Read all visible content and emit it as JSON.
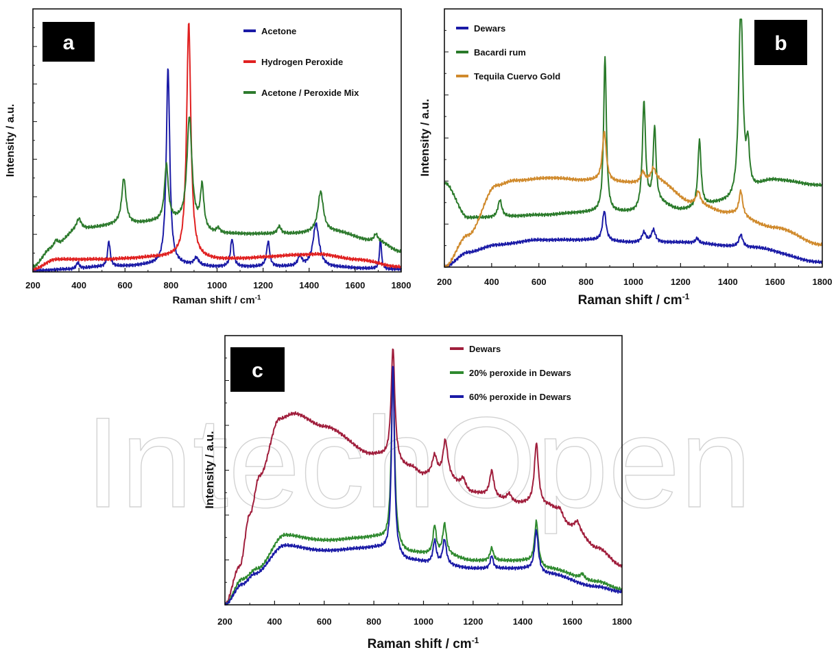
{
  "watermark": "IntechOpen",
  "chart_data": [
    {
      "panel": "a",
      "type": "line",
      "xlabel": "Raman shift / cm",
      "xlabel_sup": "-1",
      "ylabel": "Intensity / a.u.",
      "xlim": [
        200,
        1800
      ],
      "ylim": [
        0,
        1
      ],
      "x_ticks": [
        "200",
        "400",
        "600",
        "800",
        "1000",
        "1200",
        "1400",
        "1600",
        "1800"
      ],
      "y_tick_labels": false,
      "legend_position": "top-right",
      "series": [
        {
          "name": "Acetone",
          "color": "#1a1aa6",
          "base": [
            [
              200,
              0.005
            ],
            [
              350,
              0.01
            ],
            [
              500,
              0.02
            ],
            [
              800,
              0.03
            ],
            [
              1000,
              0.02
            ],
            [
              1400,
              0.02
            ],
            [
              1800,
              0.01
            ]
          ],
          "peaks": [
            [
              395,
              0.025,
              8
            ],
            [
              530,
              0.1,
              7
            ],
            [
              787,
              0.78,
              9
            ],
            [
              910,
              0.03,
              12
            ],
            [
              1065,
              0.11,
              8
            ],
            [
              1222,
              0.1,
              8
            ],
            [
              1360,
              0.04,
              10
            ],
            [
              1430,
              0.17,
              16
            ],
            [
              1710,
              0.12,
              5
            ]
          ]
        },
        {
          "name": "Hydrogen Peroxide",
          "color": "#e02020",
          "base": [
            [
              200,
              0.01
            ],
            [
              300,
              0.05
            ],
            [
              500,
              0.05
            ],
            [
              800,
              0.06
            ],
            [
              1000,
              0.05
            ],
            [
              1450,
              0.07
            ],
            [
              1600,
              0.05
            ],
            [
              1800,
              0.02
            ]
          ],
          "peaks": [
            [
              877,
              0.93,
              11
            ]
          ]
        },
        {
          "name": "Acetone / Peroxide Mix",
          "color": "#2d7a2d",
          "base": [
            [
              200,
              0.02
            ],
            [
              280,
              0.09
            ],
            [
              400,
              0.17
            ],
            [
              600,
              0.19
            ],
            [
              800,
              0.2
            ],
            [
              1000,
              0.15
            ],
            [
              1300,
              0.15
            ],
            [
              1500,
              0.16
            ],
            [
              1700,
              0.12
            ],
            [
              1800,
              0.08
            ]
          ],
          "peaks": [
            [
              300,
              0.03,
              12
            ],
            [
              400,
              0.04,
              12
            ],
            [
              595,
              0.18,
              11
            ],
            [
              780,
              0.22,
              10
            ],
            [
              880,
              0.43,
              13
            ],
            [
              935,
              0.17,
              9
            ],
            [
              1005,
              0.02,
              10
            ],
            [
              1270,
              0.03,
              10
            ],
            [
              1450,
              0.16,
              14
            ],
            [
              1690,
              0.03,
              10
            ]
          ]
        }
      ]
    },
    {
      "panel": "b",
      "type": "line",
      "xlabel": "Raman shift / cm",
      "xlabel_sup": "-1",
      "ylabel": "Intensity / a.u.",
      "xlim": [
        200,
        1800
      ],
      "ylim": [
        0,
        1
      ],
      "x_ticks": [
        "200",
        "400",
        "600",
        "800",
        "1000",
        "1200",
        "1400",
        "1600",
        "1800"
      ],
      "y_tick_labels": false,
      "legend_position": "top-left",
      "series": [
        {
          "name": "Dewars",
          "color": "#1a1aa6",
          "base": [
            [
              200,
              0.0
            ],
            [
              300,
              0.06
            ],
            [
              420,
              0.09
            ],
            [
              600,
              0.11
            ],
            [
              800,
              0.11
            ],
            [
              1000,
              0.1
            ],
            [
              1200,
              0.1
            ],
            [
              1500,
              0.08
            ],
            [
              1800,
              0.02
            ]
          ],
          "peaks": [
            [
              877,
              0.12,
              9
            ],
            [
              1045,
              0.04,
              10
            ],
            [
              1085,
              0.05,
              10
            ],
            [
              1270,
              0.02,
              8
            ],
            [
              1455,
              0.05,
              10
            ]
          ]
        },
        {
          "name": "Bacardi rum",
          "color": "#2a7a2a",
          "base": [
            [
              200,
              0.34
            ],
            [
              300,
              0.2
            ],
            [
              400,
              0.2
            ],
            [
              600,
              0.21
            ],
            [
              800,
              0.22
            ],
            [
              1000,
              0.22
            ],
            [
              1100,
              0.26
            ],
            [
              1200,
              0.23
            ],
            [
              1400,
              0.26
            ],
            [
              1600,
              0.35
            ],
            [
              1800,
              0.33
            ]
          ],
          "peaks": [
            [
              435,
              0.07,
              10
            ],
            [
              880,
              0.63,
              7
            ],
            [
              1045,
              0.43,
              8
            ],
            [
              1090,
              0.3,
              7
            ],
            [
              1280,
              0.27,
              8
            ],
            [
              1455,
              0.82,
              10
            ],
            [
              1485,
              0.17,
              8
            ]
          ]
        },
        {
          "name": "Tequila Cuervo Gold",
          "color": "#d08a2c",
          "base": [
            [
              200,
              0.0
            ],
            [
              300,
              0.13
            ],
            [
              420,
              0.33
            ],
            [
              500,
              0.35
            ],
            [
              650,
              0.36
            ],
            [
              800,
              0.35
            ],
            [
              1000,
              0.34
            ],
            [
              1100,
              0.35
            ],
            [
              1250,
              0.26
            ],
            [
              1400,
              0.22
            ],
            [
              1600,
              0.16
            ],
            [
              1800,
              0.09
            ]
          ],
          "peaks": [
            [
              877,
              0.2,
              10
            ],
            [
              1040,
              0.04,
              10
            ],
            [
              1085,
              0.05,
              12
            ],
            [
              1275,
              0.05,
              10
            ],
            [
              1455,
              0.1,
              9
            ]
          ]
        }
      ]
    },
    {
      "panel": "c",
      "type": "line",
      "xlabel": "Raman shift / cm",
      "xlabel_sup": "-1",
      "ylabel": "Intensity / a.u.",
      "xlim": [
        200,
        1800
      ],
      "ylim": [
        0,
        1
      ],
      "x_ticks": [
        "200",
        "400",
        "600",
        "800",
        "1000",
        "1200",
        "1400",
        "1600",
        "1800"
      ],
      "y_tick_labels": false,
      "legend_position": "top-right",
      "series": [
        {
          "name": "Dewars",
          "color": "#a01e3c",
          "base": [
            [
              200,
              0.0
            ],
            [
              260,
              0.15
            ],
            [
              300,
              0.35
            ],
            [
              340,
              0.5
            ],
            [
              420,
              0.72
            ],
            [
              480,
              0.74
            ],
            [
              600,
              0.69
            ],
            [
              800,
              0.58
            ],
            [
              950,
              0.53
            ],
            [
              1000,
              0.5
            ],
            [
              1100,
              0.48
            ],
            [
              1200,
              0.43
            ],
            [
              1400,
              0.39
            ],
            [
              1500,
              0.38
            ],
            [
              1600,
              0.3
            ],
            [
              1700,
              0.22
            ],
            [
              1800,
              0.15
            ]
          ],
          "peaks": [
            [
              877,
              0.44,
              9
            ],
            [
              1045,
              0.08,
              12
            ],
            [
              1088,
              0.15,
              12
            ],
            [
              1160,
              0.04,
              12
            ],
            [
              1275,
              0.1,
              10
            ],
            [
              1345,
              0.03,
              12
            ],
            [
              1455,
              0.24,
              10
            ],
            [
              1550,
              0.03,
              14
            ],
            [
              1620,
              0.03,
              12
            ]
          ]
        },
        {
          "name": "20% peroxide in Dewars",
          "color": "#2f8a2f",
          "base": [
            [
              200,
              0.0
            ],
            [
              270,
              0.1
            ],
            [
              330,
              0.14
            ],
            [
              440,
              0.27
            ],
            [
              600,
              0.25
            ],
            [
              800,
              0.26
            ],
            [
              950,
              0.2
            ],
            [
              1100,
              0.19
            ],
            [
              1200,
              0.17
            ],
            [
              1400,
              0.17
            ],
            [
              1500,
              0.14
            ],
            [
              1700,
              0.09
            ],
            [
              1800,
              0.06
            ]
          ],
          "peaks": [
            [
              877,
              0.68,
              8
            ],
            [
              1045,
              0.11,
              8
            ],
            [
              1085,
              0.12,
              9
            ],
            [
              1275,
              0.05,
              8
            ],
            [
              1455,
              0.17,
              9
            ],
            [
              1640,
              0.02,
              10
            ]
          ]
        },
        {
          "name": "60% peroxide in Dewars",
          "color": "#1a1aa6",
          "base": [
            [
              200,
              0.0
            ],
            [
              270,
              0.08
            ],
            [
              320,
              0.12
            ],
            [
              440,
              0.23
            ],
            [
              600,
              0.21
            ],
            [
              800,
              0.22
            ],
            [
              950,
              0.17
            ],
            [
              1100,
              0.15
            ],
            [
              1200,
              0.14
            ],
            [
              1400,
              0.14
            ],
            [
              1500,
              0.12
            ],
            [
              1700,
              0.07
            ],
            [
              1800,
              0.05
            ]
          ],
          "peaks": [
            [
              877,
              0.74,
              7
            ],
            [
              1045,
              0.09,
              8
            ],
            [
              1085,
              0.1,
              9
            ],
            [
              1275,
              0.05,
              7
            ],
            [
              1455,
              0.16,
              9
            ]
          ]
        }
      ]
    }
  ]
}
